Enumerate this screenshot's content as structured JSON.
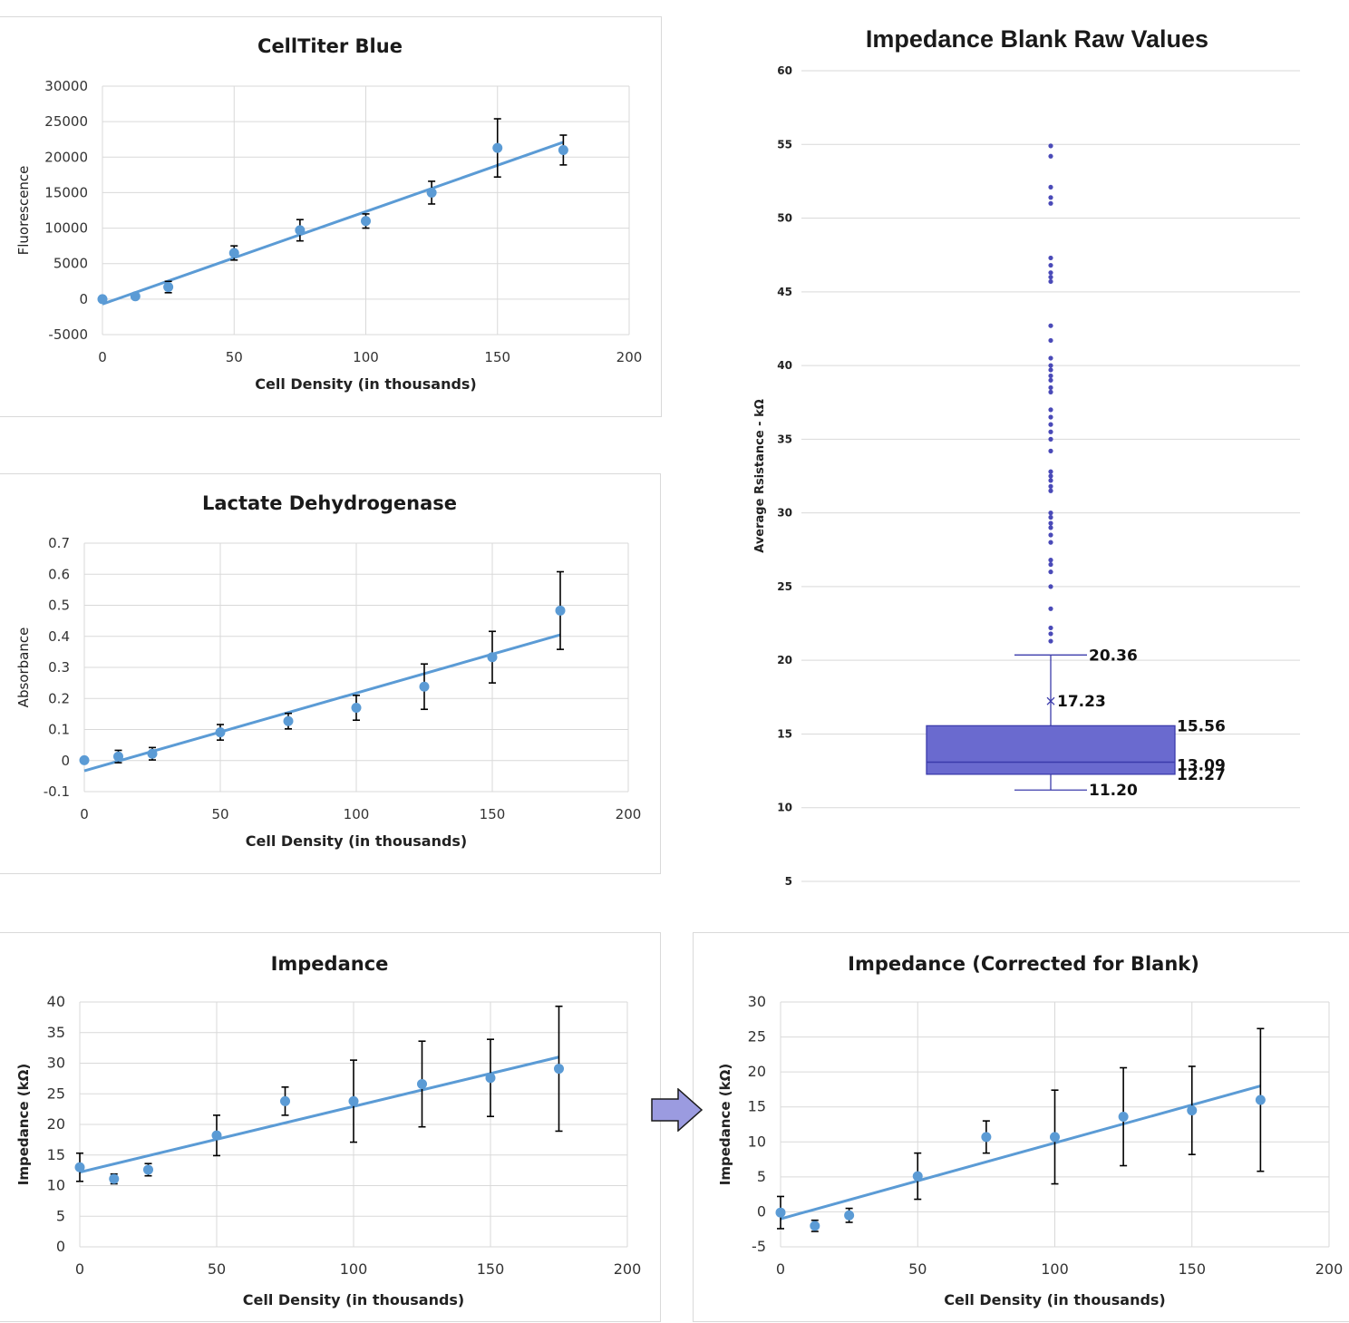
{
  "colors": {
    "marker": "#5b9bd5",
    "trend": "#5b9bd5",
    "error_bar": "#000000",
    "grid": "#d9d9d9",
    "box_fill": "#6a6acf",
    "box_stroke": "#3b3bab",
    "outlier": "#4a4ab8",
    "arrow_fill": "#9b9be0",
    "arrow_stroke": "#1a1a1a"
  },
  "icons": {
    "arrow": "right-arrow-icon"
  },
  "chart_data": [
    {
      "id": "ctb",
      "type": "scatter",
      "title": "CellTiter Blue",
      "xlabel": "Cell Density (in thousands)",
      "ylabel": "Fluorescence",
      "xlim": [
        0,
        200
      ],
      "ylim": [
        -5000,
        30000
      ],
      "xticks": [
        0,
        50,
        100,
        150,
        200
      ],
      "yticks": [
        -5000,
        0,
        5000,
        10000,
        15000,
        20000,
        25000,
        30000
      ],
      "grid": true,
      "trendline": {
        "x": [
          0,
          175
        ],
        "y": [
          -700,
          22100
        ]
      },
      "points": {
        "x": [
          0,
          12.5,
          25,
          50,
          75,
          100,
          125,
          150,
          175
        ],
        "y": [
          0,
          400,
          1700,
          6500,
          9700,
          11000,
          15000,
          21300,
          21000
        ],
        "err": [
          0,
          300,
          800,
          1000,
          1500,
          1000,
          1600,
          4100,
          2100
        ]
      }
    },
    {
      "id": "ldh",
      "type": "scatter",
      "title": "Lactate Dehydrogenase",
      "xlabel": "Cell Density (in thousands)",
      "ylabel": "Absorbance",
      "xlim": [
        0,
        200
      ],
      "ylim": [
        -0.1,
        0.7
      ],
      "xticks": [
        0,
        50,
        100,
        150,
        200
      ],
      "yticks": [
        -0.1,
        0,
        0.1,
        0.2,
        0.3,
        0.4,
        0.5,
        0.6,
        0.7
      ],
      "grid": true,
      "trendline": {
        "x": [
          0,
          175
        ],
        "y": [
          -0.033,
          0.405
        ]
      },
      "points": {
        "x": [
          0,
          12.5,
          25,
          50,
          75,
          100,
          125,
          150,
          175
        ],
        "y": [
          0.001,
          0.013,
          0.022,
          0.091,
          0.127,
          0.17,
          0.238,
          0.333,
          0.483
        ],
        "err": [
          0,
          0.02,
          0.02,
          0.025,
          0.025,
          0.04,
          0.073,
          0.083,
          0.125
        ]
      }
    },
    {
      "id": "box",
      "type": "box",
      "title": "Impedance Blank Raw Values",
      "ylabel": "Average Rsistance - kΩ",
      "ylim": [
        5,
        60
      ],
      "yticks": [
        5,
        10,
        15,
        20,
        25,
        30,
        35,
        40,
        45,
        50,
        55,
        60
      ],
      "grid": true,
      "whisker_max": 20.36,
      "mean": 17.23,
      "q3": 15.56,
      "median": 13.09,
      "q1": 12.27,
      "whisker_min": 11.2,
      "labels": [
        "20.36",
        "17.23",
        "15.56",
        "13.09",
        "12.27",
        "11.20"
      ],
      "outliers": [
        21.3,
        21.8,
        22.2,
        23.5,
        25.0,
        26.0,
        26.5,
        26.8,
        28.0,
        28.5,
        29.0,
        29.3,
        29.7,
        30.0,
        31.5,
        31.8,
        32.2,
        32.5,
        32.8,
        34.2,
        35.0,
        35.5,
        36.0,
        36.5,
        37.0,
        38.2,
        38.5,
        39.0,
        39.3,
        39.7,
        40.0,
        40.5,
        41.7,
        42.7,
        45.7,
        46.0,
        46.3,
        46.8,
        47.3,
        51.0,
        51.4,
        52.1,
        54.2,
        54.9
      ]
    },
    {
      "id": "imp",
      "type": "scatter",
      "title": "Impedance",
      "xlabel": "Cell Density (in thousands)",
      "ylabel": "Impedance (kΩ)",
      "xlim": [
        0,
        200
      ],
      "ylim": [
        0,
        40
      ],
      "xticks": [
        0,
        50,
        100,
        150,
        200
      ],
      "yticks": [
        0,
        5,
        10,
        15,
        20,
        25,
        30,
        35,
        40
      ],
      "grid": true,
      "trendline": {
        "x": [
          0,
          175
        ],
        "y": [
          12.2,
          31.0
        ]
      },
      "points": {
        "x": [
          0,
          12.5,
          25,
          50,
          75,
          100,
          125,
          150,
          175
        ],
        "y": [
          13.0,
          11.1,
          12.6,
          18.2,
          23.8,
          23.8,
          26.6,
          27.6,
          29.1
        ],
        "err": [
          2.3,
          0.8,
          1.0,
          3.3,
          2.3,
          6.7,
          7.0,
          6.3,
          10.2
        ]
      }
    },
    {
      "id": "corr",
      "type": "scatter",
      "title": "Impedance (Corrected for Blank)",
      "xlabel": "Cell Density (in thousands)",
      "ylabel": "Impedance (kΩ)",
      "xlim": [
        0,
        200
      ],
      "ylim": [
        -5,
        30
      ],
      "xticks": [
        0,
        50,
        100,
        150,
        200
      ],
      "yticks": [
        -5,
        0,
        5,
        10,
        15,
        20,
        25,
        30
      ],
      "grid": true,
      "trendline": {
        "x": [
          0,
          175
        ],
        "y": [
          -1.0,
          18.0
        ]
      },
      "points": {
        "x": [
          0,
          12.5,
          25,
          50,
          75,
          100,
          125,
          150,
          175
        ],
        "y": [
          -0.1,
          -2.0,
          -0.5,
          5.1,
          10.7,
          10.7,
          13.6,
          14.5,
          16.0
        ],
        "err": [
          2.3,
          0.8,
          1.0,
          3.3,
          2.3,
          6.7,
          7.0,
          6.3,
          10.2
        ]
      }
    }
  ]
}
